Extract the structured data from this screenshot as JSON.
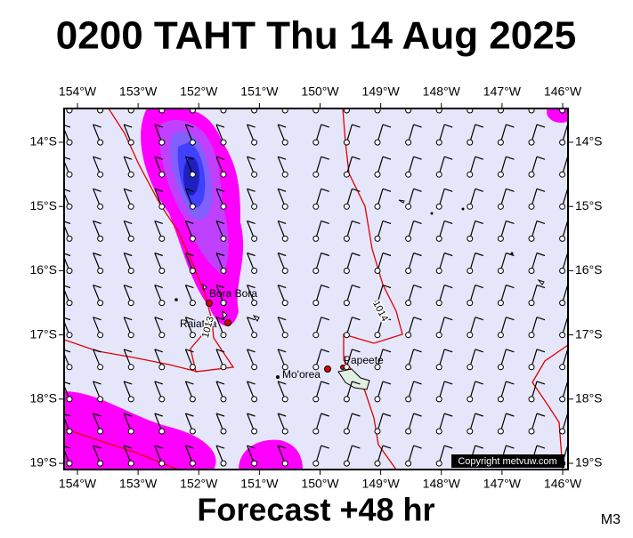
{
  "title": "0200 TAHT Thu 14 Aug 2025",
  "footer": "Forecast +48 hr",
  "model": "M3",
  "copyright": "Copyright metvuw.com",
  "axes": {
    "longitudes": [
      "154°W",
      "153°W",
      "152°W",
      "151°W",
      "150°W",
      "149°W",
      "148°W",
      "147°W",
      "146°W"
    ],
    "latitudes": [
      "14°S",
      "15°S",
      "16°S",
      "17°S",
      "18°S",
      "19°S"
    ]
  },
  "places": {
    "bora_bora": "Bora Bora",
    "raiatea": "Raiatea",
    "moorea": "Mo'orea",
    "papeete": "Papeete"
  },
  "isobars": [
    "1013",
    "1014"
  ]
}
